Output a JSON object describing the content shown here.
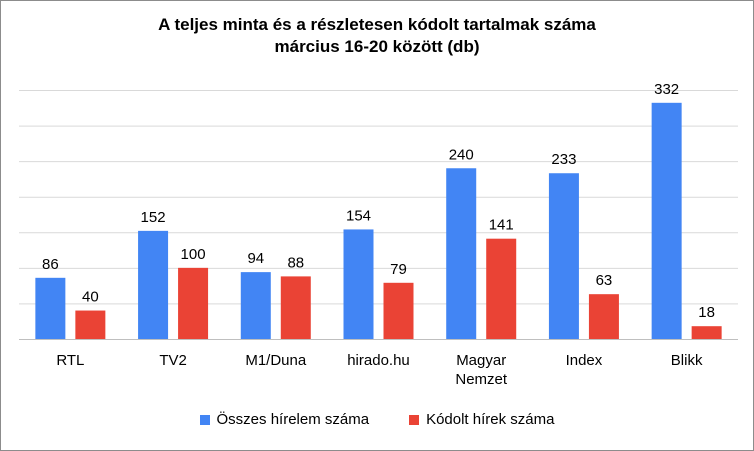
{
  "chart_data": {
    "type": "bar",
    "title_lines": [
      "A teljes minta és a részletesen kódolt tartalmak száma",
      "március 16-20 között (db)"
    ],
    "categories": [
      [
        "RTL"
      ],
      [
        "TV2"
      ],
      [
        "M1/Duna"
      ],
      [
        "hirado.hu"
      ],
      [
        "Magyar",
        "Nemzet"
      ],
      [
        "Index"
      ],
      [
        "Blikk"
      ]
    ],
    "series": [
      {
        "name": "Összes hírelem száma",
        "color": "#4285f4",
        "values": [
          86,
          152,
          94,
          154,
          240,
          233,
          332
        ]
      },
      {
        "name": "Kódolt hírek száma",
        "color": "#ea4335",
        "values": [
          40,
          100,
          88,
          79,
          141,
          63,
          18
        ]
      }
    ],
    "ylim": [
      0,
      350
    ],
    "gridlines": true,
    "legend_position": "bottom",
    "data_labels": true
  }
}
